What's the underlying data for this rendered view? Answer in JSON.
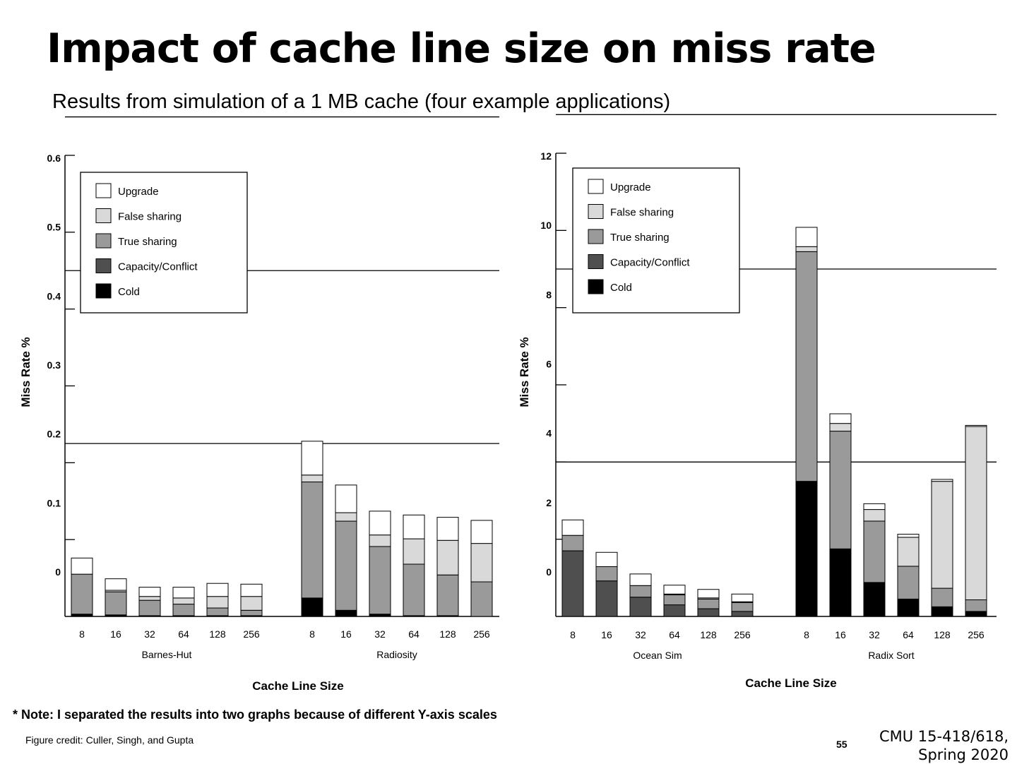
{
  "slide": {
    "title": "Impact of cache line size on miss rate",
    "subtitle": "Results from simulation of a 1 MB cache (four example applications)",
    "note": "* Note: I separated the results into two graphs because of different Y-axis scales",
    "credit": "Figure credit: Culler, Singh, and Gupta",
    "page_number": "55",
    "course": "CMU 15-418/618,",
    "term": "Spring 2020"
  },
  "colors": {
    "Upgrade": "#ffffff",
    "False sharing": "#d9d9d9",
    "True sharing": "#9a9a9a",
    "Capacity/Conflict": "#4f4f4f",
    "Cold": "#000000"
  },
  "chart_data": [
    {
      "type": "bar",
      "stacked": true,
      "ylabel": "Miss Rate %",
      "xlabel": "Cache Line Size",
      "ylim": [
        0,
        0.6
      ],
      "yticks": [
        "0",
        "0.1",
        "0.2",
        "0.3",
        "0.4",
        "0.5",
        "0.6"
      ],
      "legend": [
        "Upgrade",
        "False sharing",
        "True sharing",
        "Capacity/Conflict",
        "Cold"
      ],
      "legend_position": "top-left",
      "groups": [
        {
          "name": "Barnes-Hut",
          "categories": [
            "8",
            "16",
            "32",
            "64",
            "128",
            "256"
          ],
          "series": [
            {
              "name": "Cold",
              "values": [
                0.003,
                0.002,
                0.001,
                0.001,
                0.001,
                0.001
              ]
            },
            {
              "name": "Capacity/Conflict",
              "values": [
                0,
                0,
                0,
                0,
                0,
                0
              ]
            },
            {
              "name": "True sharing",
              "values": [
                0.052,
                0.03,
                0.02,
                0.015,
                0.01,
                0.007
              ]
            },
            {
              "name": "False sharing",
              "values": [
                0,
                0.002,
                0.005,
                0.008,
                0.015,
                0.018
              ]
            },
            {
              "name": "Upgrade",
              "values": [
                0.021,
                0.015,
                0.012,
                0.014,
                0.017,
                0.016
              ]
            }
          ]
        },
        {
          "name": "Radiosity",
          "categories": [
            "8",
            "16",
            "32",
            "64",
            "128",
            "256"
          ],
          "series": [
            {
              "name": "Cold",
              "values": [
                0.024,
                0.008,
                0.003,
                0.001,
                0.001,
                0
              ]
            },
            {
              "name": "Capacity/Conflict",
              "values": [
                0,
                0,
                0,
                0,
                0,
                0
              ]
            },
            {
              "name": "True sharing",
              "values": [
                0.151,
                0.116,
                0.088,
                0.067,
                0.053,
                0.045
              ]
            },
            {
              "name": "False sharing",
              "values": [
                0.009,
                0.011,
                0.015,
                0.033,
                0.045,
                0.05
              ]
            },
            {
              "name": "Upgrade",
              "values": [
                0.044,
                0.036,
                0.031,
                0.031,
                0.03,
                0.03
              ]
            }
          ]
        }
      ]
    },
    {
      "type": "bar",
      "stacked": true,
      "ylabel": "Miss Rate %",
      "xlabel": "Cache Line Size",
      "ylim": [
        0,
        12
      ],
      "yticks": [
        "0",
        "2",
        "4",
        "6",
        "8",
        "10",
        "12"
      ],
      "legend": [
        "Upgrade",
        "False sharing",
        "True sharing",
        "Capacity/Conflict",
        "Cold"
      ],
      "legend_position": "top-left",
      "groups": [
        {
          "name": "Ocean Sim",
          "categories": [
            "8",
            "16",
            "32",
            "64",
            "128",
            "256"
          ],
          "series": [
            {
              "name": "Cold",
              "values": [
                0,
                0,
                0,
                0,
                0,
                0
              ]
            },
            {
              "name": "Capacity/Conflict",
              "values": [
                1.7,
                0.92,
                0.5,
                0.3,
                0.2,
                0.13
              ]
            },
            {
              "name": "True sharing",
              "values": [
                0.4,
                0.37,
                0.3,
                0.26,
                0.25,
                0.23
              ]
            },
            {
              "name": "False sharing",
              "values": [
                0,
                0,
                0,
                0.02,
                0.03,
                0.02
              ]
            },
            {
              "name": "Upgrade",
              "values": [
                0.4,
                0.37,
                0.3,
                0.23,
                0.22,
                0.2
              ]
            }
          ]
        },
        {
          "name": "Radix Sort",
          "categories": [
            "8",
            "16",
            "32",
            "64",
            "128",
            "256"
          ],
          "series": [
            {
              "name": "Cold",
              "values": [
                3.5,
                1.75,
                0.88,
                0.45,
                0.25,
                0.13
              ]
            },
            {
              "name": "Capacity/Conflict",
              "values": [
                0,
                0,
                0,
                0,
                0,
                0
              ]
            },
            {
              "name": "True sharing",
              "values": [
                5.95,
                3.05,
                1.59,
                0.85,
                0.48,
                0.3
              ]
            },
            {
              "name": "False sharing",
              "values": [
                0.13,
                0.2,
                0.3,
                0.75,
                2.77,
                4.49
              ]
            },
            {
              "name": "Upgrade",
              "values": [
                0.5,
                0.25,
                0.15,
                0.08,
                0.05,
                0.03
              ]
            }
          ]
        }
      ]
    }
  ]
}
